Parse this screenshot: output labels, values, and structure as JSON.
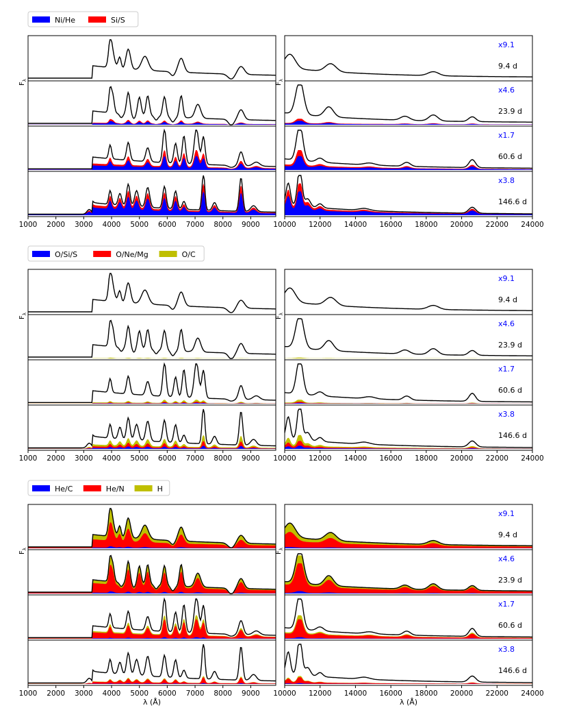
{
  "chart_data": {
    "type": "area",
    "description_labels": {
      "ylabel": "F",
      "ylabel_sub": "λ",
      "xlabel": "λ (Å)"
    },
    "epochs": [
      "9.4 d",
      "23.9 d",
      "60.6 d",
      "146.6 d"
    ],
    "scale_factors": [
      "x9.1",
      "x4.6",
      "x1.7",
      "x3.8"
    ],
    "optical_xlim": [
      1000,
      9900
    ],
    "nir_xlim": [
      10000,
      24000
    ],
    "optical_ticks": [
      "1000",
      "2000",
      "3000",
      "4000",
      "5000",
      "6000",
      "7000",
      "8000",
      "9000"
    ],
    "nir_ticks": [
      "10000",
      "12000",
      "14000",
      "16000",
      "18000",
      "20000",
      "22000",
      "24000"
    ],
    "groups": [
      {
        "legend": [
          {
            "name": "Ni/He",
            "color": "#0000ff"
          },
          {
            "name": "Si/S",
            "color": "#ff0000"
          }
        ]
      },
      {
        "legend": [
          {
            "name": "O/Si/S",
            "color": "#0000ff"
          },
          {
            "name": "O/Ne/Mg",
            "color": "#ff0000"
          },
          {
            "name": "O/C",
            "color": "#bfbf00"
          }
        ]
      },
      {
        "legend": [
          {
            "name": "He/C",
            "color": "#0000ff"
          },
          {
            "name": "He/N",
            "color": "#ff0000"
          },
          {
            "name": "H",
            "color": "#bfbf00"
          }
        ]
      }
    ],
    "spectra": {
      "9.4 d": {
        "base": 0.05,
        "optical_lines": [
          [
            3950,
            0.65,
            60
          ],
          [
            4050,
            0.3,
            70
          ],
          [
            4300,
            0.35,
            60
          ],
          [
            4600,
            0.5,
            80
          ],
          [
            5200,
            0.35,
            120
          ],
          [
            6500,
            0.35,
            100
          ],
          [
            8650,
            0.2,
            120
          ]
        ],
        "optical_absorptions": [
          [
            4350,
            0.2,
            60
          ],
          [
            6200,
            0.2,
            80
          ],
          [
            8300,
            0.25,
            120
          ]
        ],
        "nir_lines": [
          [
            10300,
            0.35,
            300
          ],
          [
            12600,
            0.2,
            300
          ],
          [
            18400,
            0.1,
            300
          ]
        ]
      },
      "23.9 d": {
        "base": 0.05,
        "optical_lines": [
          [
            3950,
            0.6,
            50
          ],
          [
            4050,
            0.4,
            50
          ],
          [
            4600,
            0.55,
            60
          ],
          [
            5000,
            0.45,
            60
          ],
          [
            5300,
            0.5,
            60
          ],
          [
            5900,
            0.5,
            60
          ],
          [
            6500,
            0.55,
            60
          ],
          [
            7100,
            0.35,
            100
          ],
          [
            8650,
            0.25,
            100
          ]
        ],
        "optical_absorptions": [
          [
            4350,
            0.2,
            60
          ],
          [
            4800,
            0.2,
            60
          ],
          [
            5600,
            0.2,
            60
          ],
          [
            6200,
            0.25,
            70
          ],
          [
            8300,
            0.3,
            100
          ]
        ],
        "nir_lines": [
          [
            10850,
            0.85,
            220
          ],
          [
            12500,
            0.25,
            250
          ],
          [
            16800,
            0.1,
            250
          ],
          [
            18400,
            0.15,
            250
          ],
          [
            20600,
            0.12,
            200
          ]
        ]
      },
      "60.6 d": {
        "base": 0.03,
        "optical_lines": [
          [
            3950,
            0.35,
            50
          ],
          [
            4600,
            0.45,
            60
          ],
          [
            5300,
            0.35,
            70
          ],
          [
            5900,
            0.85,
            60
          ],
          [
            6300,
            0.5,
            60
          ],
          [
            6600,
            0.7,
            60
          ],
          [
            7050,
            0.9,
            80
          ],
          [
            7300,
            0.7,
            60
          ],
          [
            8650,
            0.35,
            80
          ],
          [
            9200,
            0.1,
            120
          ]
        ],
        "optical_absorptions": [
          [
            8300,
            0.1,
            100
          ]
        ],
        "nir_lines": [
          [
            10850,
            0.9,
            180
          ],
          [
            12000,
            0.1,
            200
          ],
          [
            14800,
            0.05,
            300
          ],
          [
            16900,
            0.1,
            200
          ],
          [
            20600,
            0.2,
            180
          ]
        ]
      },
      "146.6 d": {
        "base": 0.02,
        "optical_lines": [
          [
            3200,
            0.12,
            80
          ],
          [
            3950,
            0.35,
            50
          ],
          [
            4300,
            0.3,
            60
          ],
          [
            4600,
            0.55,
            60
          ],
          [
            4900,
            0.4,
            70
          ],
          [
            5300,
            0.5,
            70
          ],
          [
            5900,
            0.55,
            60
          ],
          [
            6300,
            0.45,
            60
          ],
          [
            6600,
            0.2,
            60
          ],
          [
            7300,
            0.95,
            50
          ],
          [
            7700,
            0.2,
            70
          ],
          [
            8650,
            0.85,
            60
          ],
          [
            9100,
            0.15,
            100
          ]
        ],
        "optical_absorptions": [],
        "nir_lines": [
          [
            10200,
            0.55,
            120
          ],
          [
            10850,
            0.95,
            130
          ],
          [
            11300,
            0.2,
            150
          ],
          [
            12000,
            0.1,
            150
          ],
          [
            14500,
            0.05,
            300
          ],
          [
            20600,
            0.15,
            200
          ]
        ]
      }
    },
    "components": [
      {
        "group": 0,
        "name": "Ni/He",
        "epoch_fractions": [
          0.0,
          0.1,
          0.35,
          0.6
        ]
      },
      {
        "group": 0,
        "name": "Si/S",
        "epoch_fractions": [
          0.0,
          0.05,
          0.15,
          0.2
        ]
      },
      {
        "group": 1,
        "name": "O/Si/S",
        "epoch_fractions": [
          0.0,
          0.0,
          0.02,
          0.08
        ]
      },
      {
        "group": 1,
        "name": "O/Ne/Mg",
        "epoch_fractions": [
          0.0,
          0.0,
          0.03,
          0.12
        ]
      },
      {
        "group": 1,
        "name": "O/C",
        "epoch_fractions": [
          0.0,
          0.02,
          0.05,
          0.15
        ]
      },
      {
        "group": 2,
        "name": "He/C",
        "epoch_fractions": [
          0.05,
          0.06,
          0.04,
          0.02
        ]
      },
      {
        "group": 2,
        "name": "He/N",
        "epoch_fractions": [
          0.6,
          0.7,
          0.45,
          0.15
        ]
      },
      {
        "group": 2,
        "name": "H",
        "epoch_fractions": [
          0.35,
          0.2,
          0.1,
          0.03
        ]
      }
    ]
  }
}
